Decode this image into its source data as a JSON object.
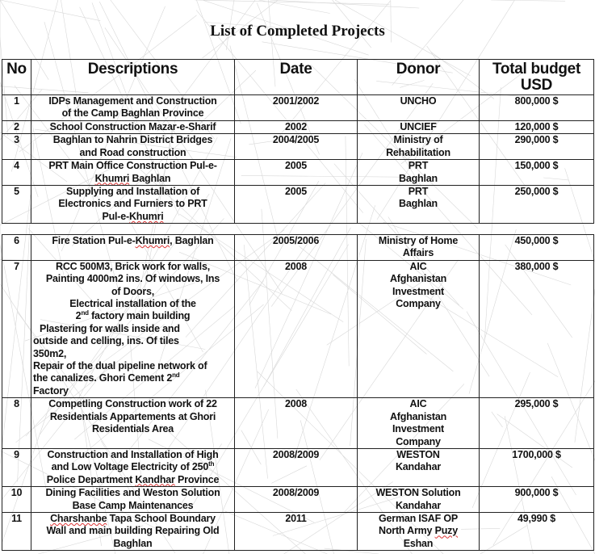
{
  "title": "List of Completed Projects",
  "columns": [
    "No",
    "Descriptions",
    "Date",
    "Donor",
    "Total budget\nUSD"
  ],
  "table1": [
    {
      "no": "1",
      "desc": [
        "IDPs Management and Construction",
        "of the Camp Baghlan Province"
      ],
      "date": "2001/2002",
      "donor": [
        "UNCHO"
      ],
      "budget": "800,000 $"
    },
    {
      "no": "2",
      "desc": [
        "School Construction Mazar-e-Sharif"
      ],
      "date": "2002",
      "donor": [
        "UNCIEF"
      ],
      "budget": "120,000 $"
    },
    {
      "no": "3",
      "desc": [
        "Baghlan to Nahrin District Bridges",
        "and Road construction"
      ],
      "date": "2004/2005",
      "donor": [
        "Ministry of",
        "Rehabilitation"
      ],
      "budget": "290,000 $"
    },
    {
      "no": "4",
      "desc": [
        "PRT Main Office Construction Pul-e-",
        "Khumri Baghlan"
      ],
      "date": "2005",
      "donor": [
        "PRT",
        "Baghlan"
      ],
      "budget": "150,000 $"
    },
    {
      "no": "5",
      "desc": [
        "Supplying and Installation of",
        "Electronics and Furniers to PRT",
        "Pul-e-Khumri"
      ],
      "date": "2005",
      "donor": [
        "PRT",
        "Baghlan"
      ],
      "budget": "250,000 $"
    }
  ],
  "table2": [
    {
      "no": "6",
      "desc": [
        "Fire Station Pul-e-Khumri, Baghlan"
      ],
      "date": "2005/2006",
      "donor": [
        "Ministry of Home",
        "Affairs"
      ],
      "budget": "450,000 $"
    },
    {
      "no": "7",
      "desc": [
        "RCC 500M3, Brick work for walls,",
        "Painting 4000m2 ins. Of windows, Ins",
        "of Doors,",
        "Electrical installation of the",
        "2nd factory main building",
        "Plastering for walls inside and",
        "outside and celling, ins. Of tiles",
        "350m2,",
        "Repair of the dual pipeline network of",
        "the canalizes. Ghori Cement 2nd",
        "Factory"
      ],
      "date": "2008",
      "donor": [
        "AIC",
        "Afghanistan",
        "Investment",
        "Company"
      ],
      "budget": "380,000 $"
    },
    {
      "no": "8",
      "desc": [
        "Competling Construction work of 22",
        "Residentials Appartements at Ghori",
        "Residentials Area"
      ],
      "date": "2008",
      "donor": [
        "AIC",
        "Afghanistan",
        "Investment",
        "Company"
      ],
      "budget": "295,000 $"
    },
    {
      "no": "9",
      "desc": [
        "Construction and Installation of High",
        "and Low Voltage Electricity of 250th",
        "Police Department Kandhar Province"
      ],
      "date": "2008/2009",
      "donor": [
        "WESTON",
        "Kandahar"
      ],
      "budget": "1700,000 $"
    },
    {
      "no": "10",
      "desc": [
        "Dining Facilities and Weston Solution",
        "Base Camp Maintenances"
      ],
      "date": "2008/2009",
      "donor": [
        "WESTON Solution",
        "Kandahar"
      ],
      "budget": "900,000 $"
    },
    {
      "no": "11",
      "desc": [
        "Charshanbe Tapa School Boundary",
        "Wall and main building Repairing Old",
        "Baghlan"
      ],
      "date": "2011",
      "donor": [
        "German ISAF OP",
        "North Army Puzy",
        "Eshan"
      ],
      "budget": "49,990 $"
    }
  ],
  "colors": {
    "border": "#222222",
    "text": "#111111",
    "spellcheck": "#dd3333"
  }
}
